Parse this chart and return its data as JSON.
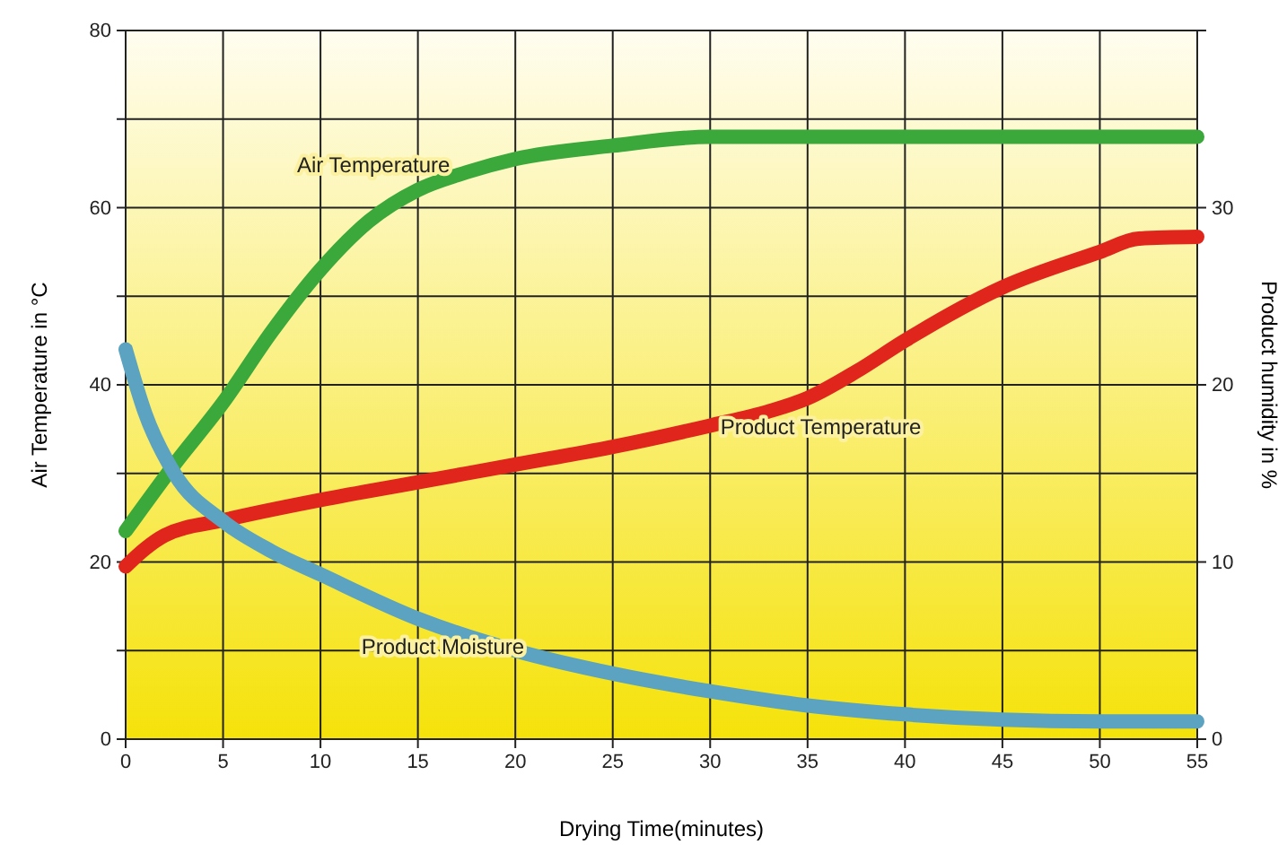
{
  "chart_data": {
    "type": "line",
    "xlabel": "Drying Time(minutes)",
    "ylabel": "Air Temperature in °C",
    "y2label": "Product humidity in %",
    "xlim": [
      0,
      55
    ],
    "xticks": [
      0,
      5,
      10,
      15,
      20,
      25,
      30,
      35,
      40,
      45,
      50,
      55
    ],
    "ylim": [
      0,
      80
    ],
    "yticks": [
      0,
      {
        "value": 10,
        "label": null
      },
      20,
      {
        "value": 30,
        "label": null
      },
      40,
      {
        "value": 50,
        "label": null
      },
      60,
      {
        "value": 70,
        "label": null
      },
      80
    ],
    "y2lim": [
      0,
      40
    ],
    "y2ticks": [
      0,
      10,
      20,
      30
    ],
    "grid": true,
    "line_style": "solid",
    "marker": "none",
    "series": [
      {
        "name": "Air Temperature",
        "color": "#3aa83a",
        "x": [
          0,
          2.5,
          5,
          7.5,
          10,
          12.5,
          15,
          17.5,
          20,
          25,
          30,
          35,
          40,
          45,
          50,
          55
        ],
        "values": [
          23.5,
          31,
          38,
          46,
          53,
          58.5,
          62,
          64,
          65.5,
          67,
          68,
          68,
          68,
          68,
          68,
          68
        ]
      },
      {
        "name": "Product Temperature",
        "color": "#e0261c",
        "x": [
          0,
          1,
          2,
          5,
          10,
          15,
          20,
          25,
          30,
          33,
          35,
          37.5,
          40,
          45,
          50,
          52,
          55
        ],
        "values": [
          19.5,
          21.5,
          23,
          24.7,
          27,
          29,
          31,
          33,
          35.4,
          37,
          38.5,
          41.5,
          45,
          51,
          55,
          56.5,
          56.7
        ]
      },
      {
        "name": "Product Moisture",
        "color": "#5ba3c0",
        "axis": "y2",
        "x": [
          0,
          1,
          2.5,
          5,
          7.5,
          10,
          15,
          20,
          25,
          30,
          35,
          40,
          45,
          50,
          55
        ],
        "values": [
          22,
          18.4,
          15,
          12.3,
          10.6,
          9.3,
          6.8,
          5,
          3.7,
          2.7,
          1.9,
          1.4,
          1.1,
          1,
          1
        ]
      }
    ]
  }
}
